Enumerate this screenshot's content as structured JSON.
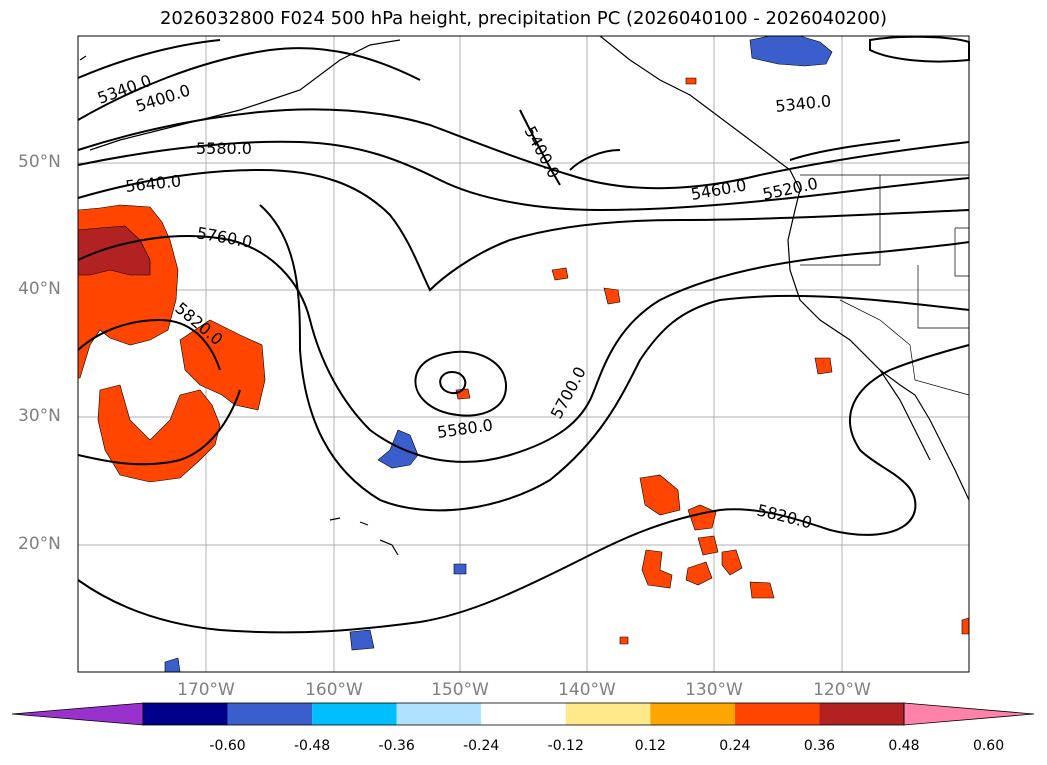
{
  "title": "2026032800 F024 500 hPa height, precipitation PC (2026040100 - 2026040200)",
  "lat_labels": [
    "50°N",
    "40°N",
    "30°N",
    "20°N"
  ],
  "lon_labels": [
    "170°W",
    "160°W",
    "150°W",
    "140°W",
    "130°W",
    "120°W"
  ],
  "contour_labels": [
    "5340.0",
    "5400.0",
    "5580.0",
    "5640.0",
    "5760.0",
    "5820.0",
    "5400.0",
    "5340.0",
    "5460.0",
    "5520.0",
    "5580.0",
    "5700.0",
    "5820.0"
  ],
  "colorbar": {
    "ticks": [
      "-0.60",
      "-0.48",
      "-0.36",
      "-0.24",
      "-0.12",
      "0.12",
      "0.24",
      "0.36",
      "0.48",
      "0.60"
    ],
    "colors": [
      "#9932cc",
      "#00008b",
      "#3a5fcd",
      "#00bfff",
      "#b0e2ff",
      "#ffffff",
      "#ffe98a",
      "#ffa500",
      "#ff4500",
      "#b22222",
      "#ff82ab"
    ]
  },
  "colors": {
    "gridline": "#b0b0b0",
    "contour": "#000000",
    "coast": "#000000"
  }
}
